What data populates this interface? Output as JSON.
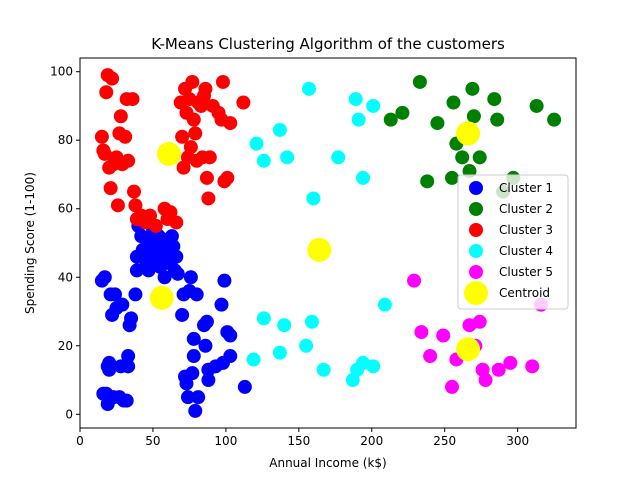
{
  "chart_data": {
    "type": "scatter",
    "title": "K-Means Clustering Algorithm of the customers",
    "xlabel": "Annual Income (k$)",
    "ylabel": "Spending Score (1-100)",
    "xlim": [
      0,
      340
    ],
    "ylim": [
      -4,
      104
    ],
    "xticks": [
      "0",
      "50",
      "100",
      "150",
      "200",
      "250",
      "300"
    ],
    "yticks": [
      "0",
      "20",
      "40",
      "60",
      "80",
      "100"
    ],
    "grid": false,
    "legend_position": "right",
    "series": [
      {
        "name": "Cluster 1",
        "color": "#0000ff",
        "points": [
          [
            15,
            39
          ],
          [
            16,
            6
          ],
          [
            17,
            40
          ],
          [
            18,
            6
          ],
          [
            19,
            3
          ],
          [
            19,
            14
          ],
          [
            20,
            15
          ],
          [
            20,
            13
          ],
          [
            21,
            35
          ],
          [
            22,
            29
          ],
          [
            23,
            5
          ],
          [
            24,
            35
          ],
          [
            25,
            31
          ],
          [
            27,
            5
          ],
          [
            28,
            14
          ],
          [
            29,
            32
          ],
          [
            30,
            4
          ],
          [
            32,
            4
          ],
          [
            33,
            17
          ],
          [
            33,
            14
          ],
          [
            34,
            26
          ],
          [
            35,
            28
          ],
          [
            38,
            35
          ],
          [
            39,
            42
          ],
          [
            39,
            46
          ],
          [
            40,
            55
          ],
          [
            42,
            52
          ],
          [
            43,
            48
          ],
          [
            45,
            45
          ],
          [
            46,
            51
          ],
          [
            47,
            42
          ],
          [
            48,
            48
          ],
          [
            49,
            50
          ],
          [
            50,
            54
          ],
          [
            51,
            44
          ],
          [
            52,
            48
          ],
          [
            53,
            46
          ],
          [
            54,
            52
          ],
          [
            55,
            43
          ],
          [
            56,
            47
          ],
          [
            57,
            51
          ],
          [
            58,
            40
          ],
          [
            59,
            48
          ],
          [
            60,
            45
          ],
          [
            61,
            50
          ],
          [
            62,
            44
          ],
          [
            63,
            52
          ],
          [
            64,
            49
          ],
          [
            65,
            42
          ],
          [
            66,
            46
          ],
          [
            67,
            41
          ],
          [
            70,
            29
          ],
          [
            71,
            35
          ],
          [
            72,
            11
          ],
          [
            73,
            9
          ],
          [
            74,
            5
          ],
          [
            75,
            36
          ],
          [
            76,
            40
          ],
          [
            77,
            12
          ],
          [
            78,
            22
          ],
          [
            78,
            17
          ],
          [
            79,
            1
          ],
          [
            80,
            35
          ],
          [
            81,
            5
          ],
          [
            85,
            26
          ],
          [
            86,
            20
          ],
          [
            87,
            27
          ],
          [
            88,
            13
          ],
          [
            88,
            10
          ],
          [
            93,
            14
          ],
          [
            97,
            32
          ],
          [
            98,
            15
          ],
          [
            99,
            39
          ],
          [
            101,
            24
          ],
          [
            103,
            17
          ],
          [
            103,
            23
          ],
          [
            113,
            8
          ]
        ]
      },
      {
        "name": "Cluster 2",
        "color": "#008000",
        "points": [
          [
            213,
            86
          ],
          [
            221,
            88
          ],
          [
            233,
            97
          ],
          [
            238,
            68
          ],
          [
            245,
            85
          ],
          [
            255,
            69
          ],
          [
            256,
            91
          ],
          [
            258,
            79
          ],
          [
            262,
            75
          ],
          [
            267,
            71
          ],
          [
            269,
            95
          ],
          [
            270,
            87
          ],
          [
            274,
            75
          ],
          [
            284,
            92
          ],
          [
            286,
            86
          ],
          [
            290,
            65
          ],
          [
            297,
            69
          ],
          [
            313,
            90
          ],
          [
            325,
            86
          ]
        ]
      },
      {
        "name": "Cluster 3",
        "color": "#ff0000",
        "points": [
          [
            15,
            81
          ],
          [
            16,
            77
          ],
          [
            17,
            76
          ],
          [
            18,
            94
          ],
          [
            19,
            99
          ],
          [
            20,
            72
          ],
          [
            21,
            66
          ],
          [
            22,
            98
          ],
          [
            23,
            73
          ],
          [
            25,
            75
          ],
          [
            26,
            61
          ],
          [
            27,
            82
          ],
          [
            28,
            87
          ],
          [
            29,
            73
          ],
          [
            31,
            81
          ],
          [
            32,
            92
          ],
          [
            33,
            74
          ],
          [
            36,
            92
          ],
          [
            37,
            65
          ],
          [
            38,
            61
          ],
          [
            39,
            57
          ],
          [
            42,
            58
          ],
          [
            45,
            56
          ],
          [
            48,
            58
          ],
          [
            52,
            55
          ],
          [
            58,
            60
          ],
          [
            60,
            57
          ],
          [
            62,
            59
          ],
          [
            66,
            56
          ],
          [
            69,
            91
          ],
          [
            70,
            81
          ],
          [
            71,
            72
          ],
          [
            72,
            95
          ],
          [
            73,
            88
          ],
          [
            74,
            75
          ],
          [
            75,
            92
          ],
          [
            76,
            78
          ],
          [
            77,
            97
          ],
          [
            78,
            86
          ],
          [
            79,
            82
          ],
          [
            80,
            74
          ],
          [
            81,
            91
          ],
          [
            83,
            90
          ],
          [
            84,
            75
          ],
          [
            85,
            93
          ],
          [
            86,
            95
          ],
          [
            87,
            69
          ],
          [
            88,
            63
          ],
          [
            89,
            75
          ],
          [
            91,
            90
          ],
          [
            95,
            88
          ],
          [
            97,
            86
          ],
          [
            98,
            97
          ],
          [
            99,
            68
          ],
          [
            101,
            69
          ],
          [
            103,
            85
          ],
          [
            112,
            91
          ]
        ]
      },
      {
        "name": "Cluster 4",
        "color": "#00ffff",
        "points": [
          [
            119,
            16
          ],
          [
            121,
            79
          ],
          [
            126,
            74
          ],
          [
            126,
            28
          ],
          [
            137,
            83
          ],
          [
            137,
            18
          ],
          [
            140,
            26
          ],
          [
            142,
            75
          ],
          [
            155,
            20
          ],
          [
            157,
            95
          ],
          [
            159,
            27
          ],
          [
            160,
            63
          ],
          [
            167,
            13
          ],
          [
            177,
            75
          ],
          [
            187,
            10
          ],
          [
            189,
            92
          ],
          [
            190,
            13
          ],
          [
            191,
            86
          ],
          [
            194,
            15
          ],
          [
            194,
            69
          ],
          [
            201,
            90
          ],
          [
            201,
            14
          ],
          [
            209,
            32
          ]
        ]
      },
      {
        "name": "Cluster 5",
        "color": "#ff00ff",
        "points": [
          [
            229,
            39
          ],
          [
            234,
            24
          ],
          [
            240,
            17
          ],
          [
            249,
            23
          ],
          [
            255,
            8
          ],
          [
            258,
            16
          ],
          [
            264,
            18
          ],
          [
            267,
            26
          ],
          [
            271,
            20
          ],
          [
            274,
            27
          ],
          [
            276,
            13
          ],
          [
            278,
            10
          ],
          [
            287,
            13
          ],
          [
            295,
            15
          ],
          [
            310,
            14
          ],
          [
            316,
            32
          ]
        ]
      }
    ],
    "centroids": {
      "name": "Centroid",
      "color": "#ffff00",
      "points": [
        [
          61,
          76
        ],
        [
          56,
          34
        ],
        [
          164,
          48
        ],
        [
          266,
          82
        ],
        [
          266,
          19
        ]
      ]
    }
  }
}
